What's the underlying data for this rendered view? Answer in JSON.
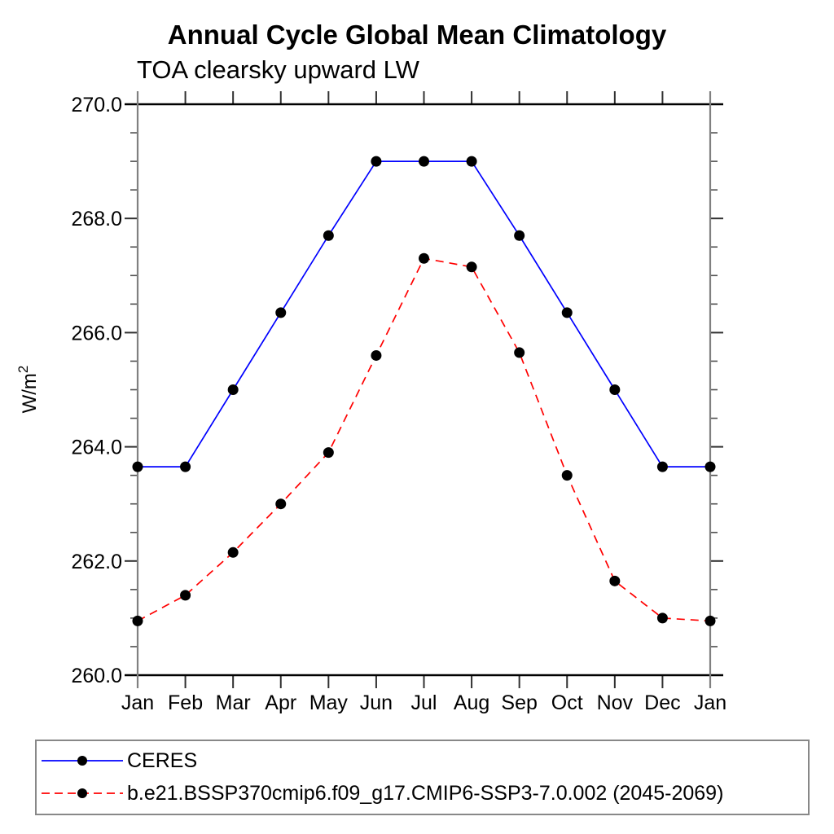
{
  "chart_data": {
    "type": "line",
    "title": "Annual Cycle Global Mean Climatology",
    "subtitle": "TOA clearsky upward LW",
    "ylabel_base": "W/m",
    "ylabel_sup": "2",
    "categories": [
      "Jan",
      "Feb",
      "Mar",
      "Apr",
      "May",
      "Jun",
      "Jul",
      "Aug",
      "Sep",
      "Oct",
      "Nov",
      "Dec",
      "Jan"
    ],
    "series": [
      {
        "name": "CERES",
        "color": "#0000ff",
        "line_style": "solid",
        "marker": "filled-circle",
        "marker_color": "#000000",
        "values": [
          263.65,
          263.65,
          265.0,
          266.35,
          267.7,
          269.0,
          269.0,
          269.0,
          267.7,
          266.35,
          265.0,
          263.65,
          263.65
        ]
      },
      {
        "name": "b.e21.BSSP370cmip6.f09_g17.CMIP6-SSP3-7.0.002 (2045-2069)",
        "color": "#ff0000",
        "line_style": "dashed",
        "marker": "filled-circle",
        "marker_color": "#000000",
        "values": [
          260.95,
          261.4,
          262.15,
          263.0,
          263.9,
          265.6,
          267.3,
          267.15,
          265.65,
          263.5,
          261.65,
          261.0,
          260.95
        ]
      }
    ],
    "ylim": [
      260.0,
      270.0
    ],
    "ytick_major": 2.0,
    "ytick_minor": 0.5,
    "y_tick_labels": [
      "260.0",
      "262.0",
      "264.0",
      "266.0",
      "268.0",
      "270.0"
    ],
    "grid": false,
    "legend_position": "bottom-box"
  }
}
